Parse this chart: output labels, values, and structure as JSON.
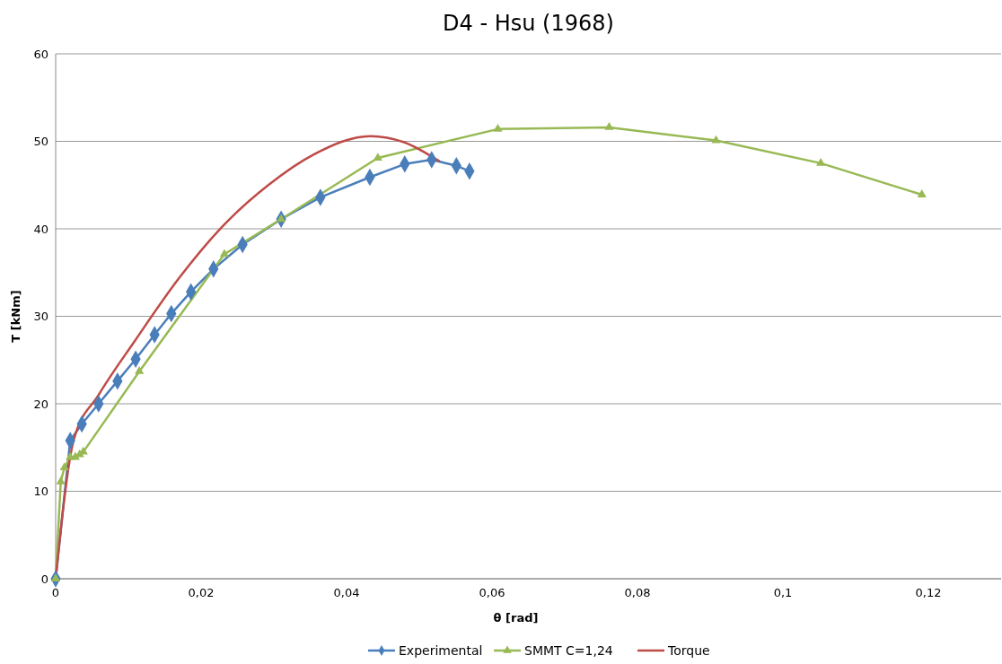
{
  "chart_data": {
    "type": "line",
    "title": "D4 - Hsu (1968)",
    "xlabel": "θ  [rad]",
    "ylabel": "T  [kNm]",
    "xlim": [
      0,
      0.13
    ],
    "xticks": [
      {
        "value": 0,
        "label": "0"
      },
      {
        "value": 0.02,
        "label": "0,02"
      },
      {
        "value": 0.04,
        "label": "0,04"
      },
      {
        "value": 0.06,
        "label": "0,06"
      },
      {
        "value": 0.08,
        "label": "0,08"
      },
      {
        "value": 0.1,
        "label": "0,1"
      },
      {
        "value": 0.12,
        "label": "0,12"
      }
    ],
    "ylim": [
      0,
      60
    ],
    "yticks": [
      0,
      10,
      20,
      30,
      40,
      50,
      60
    ],
    "grid": "y",
    "legend": "bottom",
    "series": [
      {
        "name": "Experimental",
        "color": "#4a7ebb",
        "marker": "diamond",
        "x": [
          0,
          0.002,
          0.0036,
          0.0059,
          0.0085,
          0.011,
          0.0136,
          0.0159,
          0.0186,
          0.0217,
          0.0257,
          0.031,
          0.0364,
          0.0432,
          0.048,
          0.0517,
          0.0551,
          0.0569
        ],
        "values": [
          0,
          15.8,
          17.7,
          20,
          22.6,
          25.1,
          27.9,
          30.3,
          32.8,
          35.4,
          38.2,
          41.1,
          43.6,
          45.9,
          47.4,
          47.9,
          47.2,
          46.6
        ]
      },
      {
        "name": "SMMT C=1,24",
        "color": "#98b954",
        "marker": "triangle",
        "x": [
          0,
          0.0007,
          0.0012,
          0.002,
          0.0027,
          0.0033,
          0.0038,
          0.0115,
          0.0232,
          0.031,
          0.0443,
          0.0608,
          0.0761,
          0.0908,
          0.1052,
          0.1191
        ],
        "values": [
          0,
          11.1,
          12.7,
          13.9,
          13.9,
          14.2,
          14.5,
          23.7,
          37.1,
          41.1,
          48.1,
          51.4,
          51.6,
          50.1,
          47.5,
          43.9
        ]
      },
      {
        "name": "Torque",
        "color": "#be4b48",
        "marker": "none",
        "x": [
          0,
          0.0025,
          0.0059,
          0.0109,
          0.017,
          0.0232,
          0.0294,
          0.0355,
          0.0433,
          0.0479,
          0.0528
        ],
        "values": [
          0,
          15.9,
          21,
          27.2,
          34.4,
          40.5,
          45.1,
          48.5,
          50.6,
          49.9,
          47.7
        ]
      }
    ]
  }
}
